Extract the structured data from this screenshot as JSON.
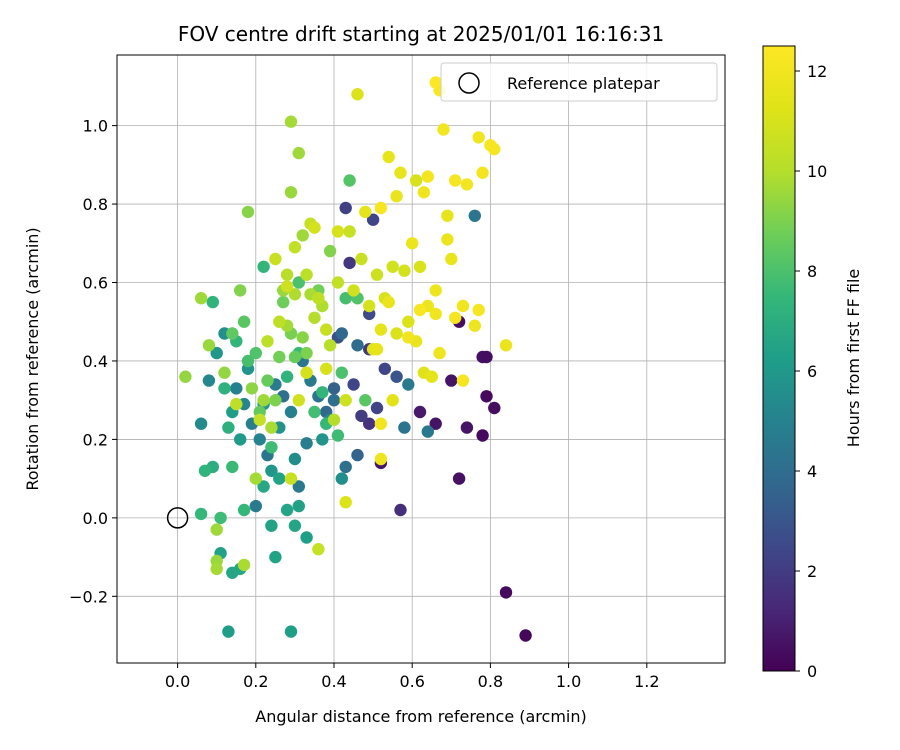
{
  "chart_data": {
    "type": "scatter",
    "title": "FOV centre drift starting at 2025/01/01 16:16:31",
    "xlabel": "Angular distance from reference (arcmin)",
    "ylabel": "Rotation from reference (arcmin)",
    "xlim": [
      -0.155,
      1.4
    ],
    "ylim": [
      -0.37,
      1.18
    ],
    "xticks": [
      "0.0",
      "0.2",
      "0.4",
      "0.6",
      "0.8",
      "1.0",
      "1.2"
    ],
    "xtick_values": [
      0.0,
      0.2,
      0.4,
      0.6,
      0.8,
      1.0,
      1.2
    ],
    "yticks": [
      "−0.2",
      "0.0",
      "0.2",
      "0.4",
      "0.6",
      "0.8",
      "1.0"
    ],
    "ytick_values": [
      -0.2,
      0.0,
      0.2,
      0.4,
      0.6,
      0.8,
      1.0
    ],
    "grid": true,
    "legend": {
      "position": "top-right",
      "entries": [
        {
          "label": "Reference platepar",
          "marker": "open-circle"
        }
      ]
    },
    "reference_point": {
      "x": 0.0,
      "y": 0.0
    },
    "colorbar": {
      "label": "Hours from first FF file",
      "range": [
        0,
        12.5
      ],
      "ticks": [
        "0",
        "2",
        "4",
        "6",
        "8",
        "10",
        "12"
      ],
      "tick_values": [
        0,
        2,
        4,
        6,
        8,
        10,
        12
      ],
      "colormap": "viridis"
    },
    "points": [
      [
        0.89,
        -0.3,
        0.2
      ],
      [
        0.84,
        -0.19,
        0.3
      ],
      [
        0.78,
        0.21,
        0.3
      ],
      [
        0.81,
        0.28,
        0.4
      ],
      [
        0.79,
        0.31,
        0.3
      ],
      [
        0.78,
        0.41,
        0.5
      ],
      [
        0.79,
        0.41,
        0.4
      ],
      [
        0.72,
        0.1,
        0.5
      ],
      [
        0.74,
        0.23,
        0.6
      ],
      [
        0.66,
        0.24,
        0.6
      ],
      [
        0.62,
        0.27,
        0.8
      ],
      [
        0.72,
        0.5,
        0.4
      ],
      [
        0.7,
        0.35,
        0.6
      ],
      [
        0.52,
        0.14,
        0.7
      ],
      [
        0.57,
        0.02,
        1.5
      ],
      [
        0.49,
        0.24,
        1.6
      ],
      [
        0.44,
        0.65,
        1.8
      ],
      [
        0.43,
        0.79,
        2.2
      ],
      [
        0.5,
        0.76,
        2.4
      ],
      [
        0.49,
        0.52,
        2.6
      ],
      [
        0.45,
        0.34,
        2.4
      ],
      [
        0.51,
        0.28,
        2.3
      ],
      [
        0.47,
        0.26,
        2.0
      ],
      [
        0.41,
        0.46,
        2.8
      ],
      [
        0.49,
        0.43,
        1.9
      ],
      [
        0.53,
        0.38,
        2.4
      ],
      [
        0.56,
        0.36,
        3.0
      ],
      [
        0.76,
        0.77,
        4.4
      ],
      [
        0.64,
        0.22,
        4.5
      ],
      [
        0.58,
        0.23,
        4.3
      ],
      [
        0.59,
        0.34,
        4.6
      ],
      [
        0.46,
        0.44,
        4.0
      ],
      [
        0.42,
        0.47,
        3.8
      ],
      [
        0.4,
        0.33,
        3.5
      ],
      [
        0.43,
        0.13,
        4.2
      ],
      [
        0.46,
        0.16,
        3.6
      ],
      [
        0.4,
        0.3,
        4.1
      ],
      [
        0.38,
        0.27,
        3.7
      ],
      [
        0.36,
        0.31,
        4.3
      ],
      [
        0.34,
        0.35,
        4.6
      ],
      [
        0.32,
        0.4,
        4.4
      ],
      [
        0.33,
        0.19,
        4.8
      ],
      [
        0.29,
        0.27,
        4.9
      ],
      [
        0.27,
        0.31,
        4.2
      ],
      [
        0.25,
        0.34,
        4.7
      ],
      [
        0.23,
        0.16,
        4.4
      ],
      [
        0.21,
        0.2,
        5.0
      ],
      [
        0.19,
        0.24,
        4.8
      ],
      [
        0.17,
        0.29,
        5.2
      ],
      [
        0.15,
        0.33,
        4.9
      ],
      [
        0.08,
        0.35,
        5.2
      ],
      [
        0.06,
        0.24,
        5.4
      ],
      [
        0.2,
        0.03,
        4.6
      ],
      [
        0.31,
        0.08,
        4.5
      ],
      [
        0.39,
        0.25,
        5.3
      ],
      [
        0.42,
        0.1,
        5.6
      ],
      [
        0.37,
        0.2,
        5.8
      ],
      [
        0.3,
        0.15,
        5.5
      ],
      [
        0.26,
        0.23,
        5.7
      ],
      [
        0.24,
        0.12,
        5.9
      ],
      [
        0.22,
        0.29,
        6.0
      ],
      [
        0.18,
        0.38,
        5.8
      ],
      [
        0.16,
        0.2,
        6.1
      ],
      [
        0.14,
        0.27,
        6.2
      ],
      [
        0.12,
        0.47,
        5.6
      ],
      [
        0.1,
        0.42,
        5.9
      ],
      [
        0.13,
        -0.29,
        6.2
      ],
      [
        0.29,
        -0.29,
        6.3
      ],
      [
        0.11,
        -0.09,
        6.4
      ],
      [
        0.25,
        -0.1,
        6.5
      ],
      [
        0.3,
        -0.02,
        6.6
      ],
      [
        0.33,
        -0.05,
        6.3
      ],
      [
        0.24,
        -0.02,
        6.5
      ],
      [
        0.28,
        0.02,
        6.6
      ],
      [
        0.31,
        0.03,
        6.4
      ],
      [
        0.22,
        0.08,
        6.7
      ],
      [
        0.26,
        0.1,
        6.5
      ],
      [
        0.16,
        -0.13,
        6.7
      ],
      [
        0.14,
        -0.14,
        6.6
      ],
      [
        0.09,
        0.13,
        7.0
      ],
      [
        0.12,
        0.33,
        7.2
      ],
      [
        0.09,
        0.55,
        7.3
      ],
      [
        0.15,
        0.45,
        7.4
      ],
      [
        0.13,
        0.23,
        7.1
      ],
      [
        0.14,
        0.13,
        7.6
      ],
      [
        0.07,
        0.12,
        7.3
      ],
      [
        0.06,
        0.01,
        7.5
      ],
      [
        0.11,
        0.0,
        7.7
      ],
      [
        0.17,
        0.02,
        7.5
      ],
      [
        0.24,
        0.18,
        7.7
      ],
      [
        0.22,
        0.64,
        7.4
      ],
      [
        0.28,
        0.36,
        7.3
      ],
      [
        0.31,
        0.42,
        7.6
      ],
      [
        0.35,
        0.27,
        7.8
      ],
      [
        0.38,
        0.24,
        7.5
      ],
      [
        0.37,
        0.32,
        7.4
      ],
      [
        0.41,
        0.21,
        7.7
      ],
      [
        0.43,
        0.56,
        7.9
      ],
      [
        0.44,
        0.86,
        8.2
      ],
      [
        0.42,
        0.37,
        8.0
      ],
      [
        0.46,
        0.56,
        8.1
      ],
      [
        0.48,
        0.3,
        8.3
      ],
      [
        0.31,
        0.6,
        8.0
      ],
      [
        0.18,
        0.4,
        7.9
      ],
      [
        0.2,
        0.42,
        8.1
      ],
      [
        0.17,
        0.5,
        8.3
      ],
      [
        0.14,
        0.47,
        8.4
      ],
      [
        0.21,
        0.27,
        8.5
      ],
      [
        0.23,
        0.35,
        8.6
      ],
      [
        0.26,
        0.41,
        8.8
      ],
      [
        0.27,
        0.55,
        8.7
      ],
      [
        0.29,
        0.47,
        8.9
      ],
      [
        0.33,
        0.42,
        9.0
      ],
      [
        0.36,
        0.58,
        8.8
      ],
      [
        0.39,
        0.68,
        9.1
      ],
      [
        0.32,
        0.46,
        9.2
      ],
      [
        0.3,
        0.41,
        8.6
      ],
      [
        0.25,
        0.3,
        9.0
      ],
      [
        0.19,
        0.33,
        9.3
      ],
      [
        0.16,
        0.58,
        9.1
      ],
      [
        0.18,
        0.78,
        9.2
      ],
      [
        0.12,
        0.37,
        9.4
      ],
      [
        0.08,
        0.44,
        9.5
      ],
      [
        0.02,
        0.36,
        9.4
      ],
      [
        0.1,
        -0.03,
        9.6
      ],
      [
        0.1,
        -0.11,
        9.5
      ],
      [
        0.1,
        -0.13,
        9.7
      ],
      [
        0.17,
        -0.12,
        9.8
      ],
      [
        0.2,
        0.1,
        9.7
      ],
      [
        0.22,
        0.3,
        9.6
      ],
      [
        0.24,
        0.23,
        9.8
      ],
      [
        0.27,
        0.58,
        9.5
      ],
      [
        0.28,
        0.49,
        9.7
      ],
      [
        0.3,
        0.57,
        9.9
      ],
      [
        0.32,
        0.72,
        9.6
      ],
      [
        0.34,
        0.57,
        9.8
      ],
      [
        0.35,
        0.51,
        10.0
      ],
      [
        0.37,
        0.54,
        9.9
      ],
      [
        0.39,
        0.44,
        10.1
      ],
      [
        0.4,
        0.25,
        10.0
      ],
      [
        0.31,
        0.93,
        9.6
      ],
      [
        0.29,
        1.01,
        9.7
      ],
      [
        0.29,
        0.83,
        9.5
      ],
      [
        0.06,
        0.56,
        9.6
      ],
      [
        0.23,
        0.45,
        10.2
      ],
      [
        0.26,
        0.5,
        10.3
      ],
      [
        0.28,
        0.62,
        10.1
      ],
      [
        0.3,
        0.69,
        10.4
      ],
      [
        0.33,
        0.62,
        10.2
      ],
      [
        0.34,
        0.75,
        10.5
      ],
      [
        0.36,
        0.56,
        10.3
      ],
      [
        0.38,
        0.48,
        10.6
      ],
      [
        0.41,
        0.6,
        10.4
      ],
      [
        0.43,
        0.3,
        10.7
      ],
      [
        0.44,
        0.73,
        10.5
      ],
      [
        0.45,
        0.58,
        10.8
      ],
      [
        0.47,
        0.66,
        10.6
      ],
      [
        0.49,
        0.54,
        10.9
      ],
      [
        0.51,
        0.62,
        10.7
      ],
      [
        0.53,
        0.56,
        11.0
      ],
      [
        0.55,
        0.64,
        10.8
      ],
      [
        0.56,
        0.47,
        11.1
      ],
      [
        0.58,
        0.63,
        10.9
      ],
      [
        0.59,
        0.5,
        11.2
      ],
      [
        0.61,
        0.86,
        11.0
      ],
      [
        0.62,
        0.64,
        11.1
      ],
      [
        0.63,
        0.37,
        11.3
      ],
      [
        0.46,
        1.08,
        11.2
      ],
      [
        0.41,
        0.73,
        11.0
      ],
      [
        0.35,
        0.74,
        10.9
      ],
      [
        0.25,
        0.66,
        10.6
      ],
      [
        0.28,
        0.59,
        10.7
      ],
      [
        0.31,
        0.3,
        10.8
      ],
      [
        0.36,
        -0.08,
        10.5
      ],
      [
        0.33,
        0.37,
        10.9
      ],
      [
        0.38,
        0.38,
        11.0
      ],
      [
        0.43,
        0.04,
        11.2
      ],
      [
        0.29,
        0.1,
        10.6
      ],
      [
        0.21,
        0.25,
        10.4
      ],
      [
        0.15,
        0.29,
        10.3
      ],
      [
        0.5,
        0.43,
        11.4
      ],
      [
        0.52,
        0.48,
        11.5
      ],
      [
        0.54,
        0.92,
        11.6
      ],
      [
        0.55,
        0.3,
        11.4
      ],
      [
        0.56,
        0.82,
        11.7
      ],
      [
        0.57,
        0.88,
        11.6
      ],
      [
        0.6,
        0.7,
        11.8
      ],
      [
        0.61,
        0.45,
        11.7
      ],
      [
        0.63,
        0.83,
        11.9
      ],
      [
        0.64,
        0.54,
        11.8
      ],
      [
        0.66,
        0.52,
        12.0
      ],
      [
        0.67,
        0.42,
        11.9
      ],
      [
        0.68,
        0.99,
        12.1
      ],
      [
        0.69,
        0.71,
        11.8
      ],
      [
        0.7,
        0.66,
        11.7
      ],
      [
        0.71,
        0.86,
        12.2
      ],
      [
        0.73,
        0.54,
        12.0
      ],
      [
        0.74,
        0.85,
        12.1
      ],
      [
        0.76,
        0.49,
        11.9
      ],
      [
        0.77,
        0.53,
        12.2
      ],
      [
        0.78,
        0.88,
        12.1
      ],
      [
        0.8,
        0.95,
        12.3
      ],
      [
        0.81,
        0.94,
        12.2
      ],
      [
        0.84,
        0.44,
        11.8
      ],
      [
        0.77,
        0.97,
        12.0
      ],
      [
        0.67,
        1.09,
        12.3
      ],
      [
        0.66,
        1.11,
        12.4
      ],
      [
        0.69,
        0.77,
        11.6
      ],
      [
        0.73,
        0.35,
        12.2
      ],
      [
        0.52,
        0.15,
        11.9
      ],
      [
        0.51,
        0.43,
        11.6
      ],
      [
        0.48,
        0.78,
        11.5
      ],
      [
        0.52,
        0.79,
        12.2
      ],
      [
        0.54,
        0.55,
        11.7
      ],
      [
        0.59,
        0.46,
        12.0
      ],
      [
        0.62,
        0.53,
        12.3
      ],
      [
        0.64,
        0.87,
        12.1
      ],
      [
        0.66,
        0.58,
        11.9
      ],
      [
        0.71,
        0.51,
        12.2
      ],
      [
        0.52,
        0.24,
        12.0
      ],
      [
        0.65,
        0.36,
        11.5
      ]
    ]
  }
}
